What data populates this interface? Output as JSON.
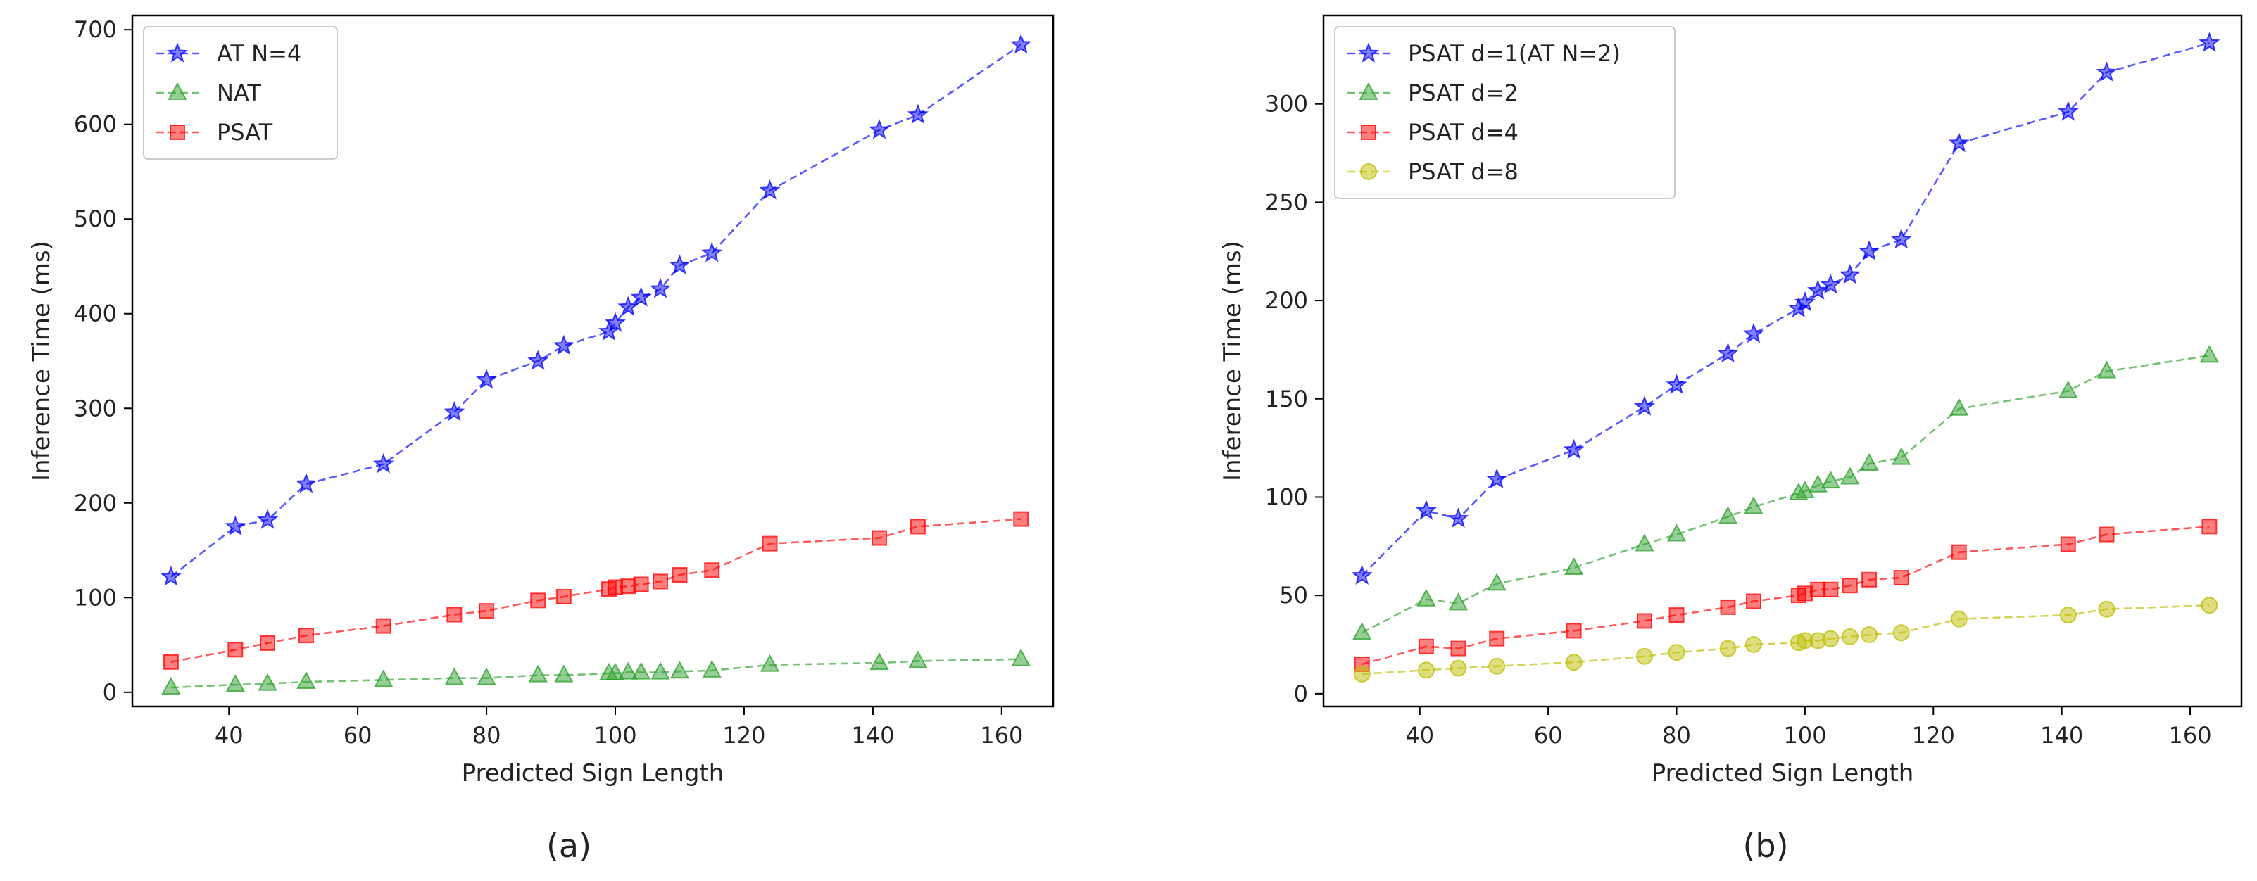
{
  "figure": {
    "panel_labels": [
      "(a)",
      "(b)"
    ]
  },
  "chart_data": [
    {
      "type": "line",
      "title": "",
      "xlabel": "Predicted Sign Length",
      "ylabel": "Inference Time (ms)",
      "xlim": [
        25,
        168
      ],
      "ylim": [
        -15,
        715
      ],
      "xticks": [
        40,
        60,
        80,
        100,
        120,
        140,
        160
      ],
      "yticks": [
        0,
        100,
        200,
        300,
        400,
        500,
        600,
        700
      ],
      "grid": false,
      "legend_position": "top-left",
      "x": [
        31,
        41,
        46,
        52,
        64,
        75,
        80,
        88,
        92,
        99,
        100,
        102,
        104,
        107,
        110,
        115,
        124,
        141,
        147,
        163
      ],
      "series": [
        {
          "name": "AT N=4",
          "color": "#0000ff",
          "marker": "star",
          "values": [
            122,
            175,
            182,
            220,
            241,
            296,
            330,
            350,
            366,
            381,
            390,
            407,
            417,
            426,
            451,
            464,
            530,
            594,
            610,
            684
          ]
        },
        {
          "name": "NAT",
          "color": "#2ca02c",
          "marker": "triangle",
          "values": [
            5,
            8,
            9,
            11,
            13,
            15,
            15,
            18,
            18,
            20,
            20,
            21,
            21,
            21,
            22,
            23,
            29,
            31,
            33,
            35
          ]
        },
        {
          "name": "PSAT",
          "color": "#ff0000",
          "marker": "square",
          "values": [
            32,
            45,
            52,
            60,
            70,
            82,
            86,
            97,
            101,
            109,
            111,
            112,
            114,
            117,
            124,
            129,
            157,
            163,
            175,
            183
          ]
        }
      ]
    },
    {
      "type": "line",
      "title": "",
      "xlabel": "Predicted Sign Length",
      "ylabel": "Inference Time (ms)",
      "xlim": [
        25,
        168
      ],
      "ylim": [
        -6.5,
        345
      ],
      "xticks": [
        40,
        60,
        80,
        100,
        120,
        140,
        160
      ],
      "yticks": [
        0,
        50,
        100,
        150,
        200,
        250,
        300
      ],
      "grid": false,
      "legend_position": "top-left",
      "x": [
        31,
        41,
        46,
        52,
        64,
        75,
        80,
        88,
        92,
        99,
        100,
        102,
        104,
        107,
        110,
        115,
        124,
        141,
        147,
        163
      ],
      "series": [
        {
          "name": "PSAT d=1(AT N=2)",
          "color": "#0000ff",
          "marker": "star",
          "values": [
            60,
            93,
            89,
            109,
            124,
            146,
            157,
            173,
            183,
            196,
            199,
            205,
            208,
            213,
            225,
            231,
            280,
            296,
            316,
            331
          ]
        },
        {
          "name": "PSAT d=2",
          "color": "#2ca02c",
          "marker": "triangle",
          "values": [
            31,
            48,
            46,
            56,
            64,
            76,
            81,
            90,
            95,
            102,
            103,
            106,
            108,
            110,
            117,
            120,
            145,
            154,
            164,
            172
          ]
        },
        {
          "name": "PSAT d=4",
          "color": "#ff0000",
          "marker": "square",
          "values": [
            15,
            24,
            23,
            28,
            32,
            37,
            40,
            44,
            47,
            50,
            51,
            53,
            53,
            55,
            58,
            59,
            72,
            76,
            81,
            85
          ]
        },
        {
          "name": "PSAT d=8",
          "color": "#bdbd00",
          "marker": "circle",
          "values": [
            10,
            12,
            13,
            14,
            16,
            19,
            21,
            23,
            25,
            26,
            27,
            27,
            28,
            29,
            30,
            31,
            38,
            40,
            43,
            45
          ]
        }
      ]
    }
  ]
}
